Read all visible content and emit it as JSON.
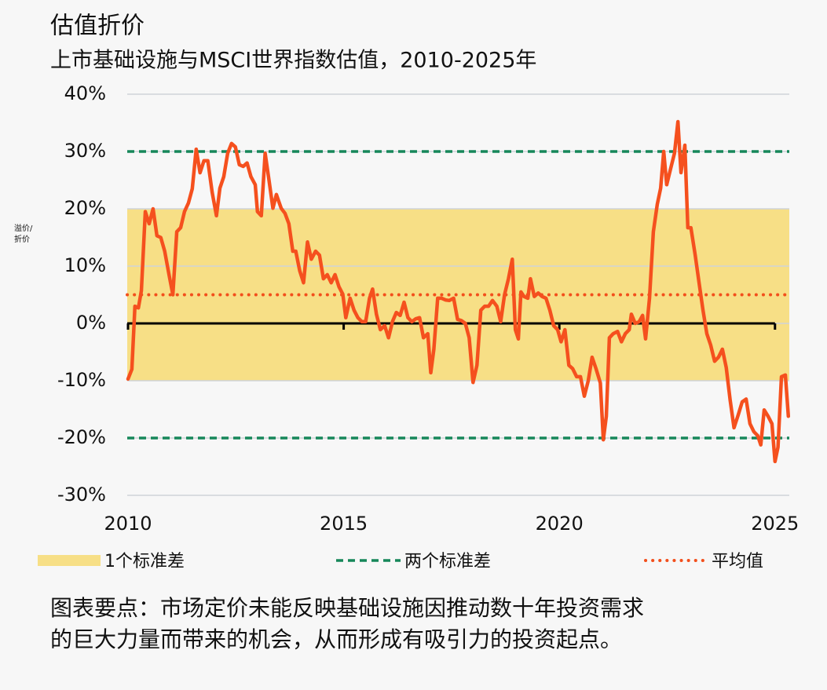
{
  "chart_data": {
    "type": "line",
    "title": "估值折价",
    "subtitle": "上市基础设施与MSCI世界指数估值，2010-2025年",
    "ylabel": [
      "溢价/",
      "折价"
    ],
    "xlim": [
      2010,
      2025.35
    ],
    "xticks": [
      2010,
      2015,
      2020,
      2025
    ],
    "ylim": [
      -30,
      40
    ],
    "yticks": [
      {
        "value": -30,
        "label": "-30%"
      },
      {
        "value": -20,
        "label": "-20%"
      },
      {
        "value": -10,
        "label": "-10%"
      },
      {
        "value": 0,
        "label": "0%"
      },
      {
        "value": 10,
        "label": "10%"
      },
      {
        "value": 20,
        "label": "20%"
      },
      {
        "value": 30,
        "label": "30%"
      },
      {
        "value": 40,
        "label": "40%"
      }
    ],
    "grid": true,
    "band": {
      "name": "1个标准差",
      "from": -10,
      "to": 20,
      "color": "#f7df86"
    },
    "two_std": {
      "name": "两个标准差",
      "values": [
        30,
        -20
      ],
      "color": "#16875a"
    },
    "mean": {
      "name": "平均值",
      "value": 5,
      "color": "#f24f1c"
    },
    "x": [
      2010.0,
      2010.09,
      2010.16,
      2010.24,
      2010.31,
      2010.4,
      2010.49,
      2010.58,
      2010.67,
      2010.76,
      2010.85,
      2010.95,
      2011.04,
      2011.13,
      2011.22,
      2011.31,
      2011.4,
      2011.49,
      2011.58,
      2011.67,
      2011.76,
      2011.85,
      2011.95,
      2012.05,
      2012.13,
      2012.22,
      2012.31,
      2012.4,
      2012.49,
      2012.58,
      2012.67,
      2012.76,
      2012.85,
      2012.95,
      2013.0,
      2013.09,
      2013.18,
      2013.27,
      2013.36,
      2013.44,
      2013.55,
      2013.64,
      2013.73,
      2013.82,
      2013.89,
      2013.98,
      2014.07,
      2014.16,
      2014.25,
      2014.35,
      2014.44,
      2014.53,
      2014.62,
      2014.71,
      2014.8,
      2014.89,
      2014.98,
      2015.05,
      2015.15,
      2015.24,
      2015.33,
      2015.42,
      2015.51,
      2015.6,
      2015.67,
      2015.76,
      2015.85,
      2015.95,
      2016.04,
      2016.13,
      2016.22,
      2016.31,
      2016.4,
      2016.49,
      2016.58,
      2016.67,
      2016.76,
      2016.85,
      2016.95,
      2017.02,
      2017.09,
      2017.18,
      2017.27,
      2017.36,
      2017.45,
      2017.55,
      2017.64,
      2017.73,
      2017.82,
      2017.91,
      2018.0,
      2018.09,
      2018.18,
      2018.27,
      2018.36,
      2018.45,
      2018.55,
      2018.64,
      2018.73,
      2018.82,
      2018.91,
      2018.98,
      2019.05,
      2019.11,
      2019.18,
      2019.27,
      2019.33,
      2019.42,
      2019.51,
      2019.6,
      2019.69,
      2019.78,
      2019.87,
      2019.96,
      2020.04,
      2020.13,
      2020.22,
      2020.31,
      2020.4,
      2020.49,
      2020.58,
      2020.67,
      2020.76,
      2020.85,
      2020.95,
      2021.02,
      2021.09,
      2021.16,
      2021.25,
      2021.35,
      2021.44,
      2021.53,
      2021.62,
      2021.67,
      2021.76,
      2021.85,
      2021.93,
      2022.0,
      2022.09,
      2022.18,
      2022.27,
      2022.35,
      2022.42,
      2022.49,
      2022.58,
      2022.67,
      2022.75,
      2022.82,
      2022.91,
      2022.98,
      2023.05,
      2023.15,
      2023.24,
      2023.33,
      2023.42,
      2023.51,
      2023.6,
      2023.69,
      2023.78,
      2023.87,
      2023.96,
      2024.05,
      2024.15,
      2024.24,
      2024.33,
      2024.42,
      2024.51,
      2024.6,
      2024.67,
      2024.75,
      2024.84,
      2024.93,
      2025.0,
      2025.07,
      2025.15,
      2025.24,
      2025.31
    ],
    "series": [
      {
        "color": "#f5501e",
        "values": [
          -9.7,
          -8,
          3,
          2.7,
          5.7,
          19.5,
          17.4,
          20,
          15.3,
          15,
          12.6,
          8.5,
          5,
          16,
          16.7,
          19.5,
          21,
          23.5,
          30.4,
          26.3,
          28.4,
          28.4,
          22.9,
          18.8,
          23.6,
          25.6,
          29.7,
          31.4,
          30.8,
          27.7,
          27.4,
          28,
          25.6,
          24.2,
          19.5,
          18.8,
          29.7,
          24.9,
          20.1,
          22.5,
          20.1,
          19.2,
          17.4,
          12.6,
          12.6,
          9.2,
          7.1,
          14.2,
          11.2,
          12.6,
          11.9,
          7.8,
          8.5,
          7.1,
          8.5,
          6.4,
          5.1,
          1,
          4.4,
          2.3,
          1,
          0.3,
          0.3,
          4.4,
          6,
          1.6,
          -1.1,
          -0.4,
          -2.5,
          0.3,
          1.9,
          1.4,
          3.7,
          1,
          0.3,
          0.8,
          1,
          -2.5,
          -1.8,
          -8.6,
          -4.5,
          4.4,
          4.4,
          4.1,
          4,
          4.4,
          0.7,
          0.5,
          0,
          -2.5,
          -10.3,
          -7.3,
          2.3,
          3,
          3,
          4,
          3,
          0.3,
          5,
          7.8,
          11.2,
          -1.1,
          -2.7,
          5.5,
          4.7,
          4.4,
          7.8,
          4.7,
          5.3,
          4.7,
          4.4,
          2.3,
          -0.4,
          -1.1,
          -3.2,
          -1.1,
          -7.3,
          -7.9,
          -9.3,
          -9.3,
          -12.7,
          -10,
          -5.9,
          -7.9,
          -10.4,
          -20.3,
          -16.2,
          -2.5,
          -1.8,
          -1.4,
          -3.2,
          -1.8,
          -1.1,
          1.6,
          0,
          0.3,
          1.4,
          -2.7,
          4.4,
          16,
          20.8,
          23.6,
          30,
          24.2,
          27,
          29.7,
          35.2,
          26.3,
          31.1,
          16.7,
          16.7,
          11.9,
          7.1,
          2.3,
          -1.8,
          -3.8,
          -6.6,
          -5.9,
          -4.5,
          -7.7,
          -13.4,
          -18.2,
          -15.9,
          -13.7,
          -13.2,
          -17.5,
          -18.9,
          -19.6,
          -21.2,
          -15.1,
          -16.2,
          -17.5,
          -24.1,
          -21.6,
          -9.3,
          -9,
          -16.2
        ]
      }
    ],
    "note": [
      "图表要点：市场定价未能反映基础设施因推动数十年投资需求",
      "的巨大力量而带来的机会，从而形成有吸引力的投资起点。"
    ]
  }
}
